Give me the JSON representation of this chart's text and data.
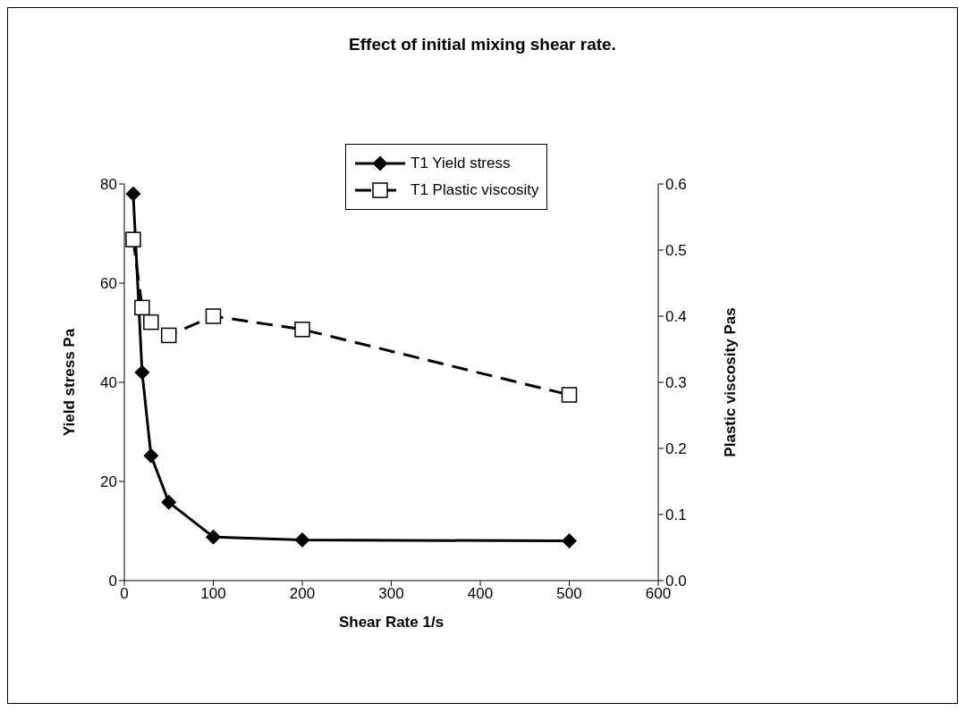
{
  "chart_data": {
    "type": "line",
    "title": "Effect of initial mixing shear rate.",
    "xlabel": "Shear Rate 1/s",
    "ylabel": "Yield stress  Pa",
    "y2label": "Plastic viscosity  Pas",
    "x": [
      10,
      20,
      30,
      50,
      100,
      200,
      500
    ],
    "series": [
      {
        "name": "T1 Yield stress",
        "color": "#000000",
        "values": [
          78,
          42,
          25.2,
          15.8,
          8.8,
          8.2,
          8.0
        ],
        "marker": "diamond",
        "line_style": "solid"
      },
      {
        "name": "T1 Plastic viscosity",
        "color": "#000000",
        "values": [
          0.516,
          0.413,
          0.391,
          0.371,
          0.4,
          0.38,
          0.281
        ],
        "marker": "square",
        "line_style": "dashed",
        "axis": "y2"
      }
    ],
    "xlim": [
      0,
      600
    ],
    "xticks": [
      0,
      100,
      200,
      300,
      400,
      500,
      600
    ],
    "ylim": [
      0,
      80
    ],
    "yticks": [
      0,
      20,
      40,
      60,
      80
    ],
    "y2lim": [
      0,
      0.6
    ],
    "y2ticks": [
      {
        "value": 0,
        "label": "0.0"
      },
      0.1,
      0.2,
      0.3,
      0.4,
      0.5,
      0.6
    ],
    "grid": false,
    "legend": "top right"
  }
}
